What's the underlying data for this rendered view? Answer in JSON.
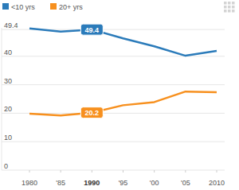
{
  "chart_data": {
    "type": "line",
    "x": [
      1980,
      1985,
      1990,
      1995,
      2000,
      2005,
      2010
    ],
    "series": [
      {
        "name": "<10 yrs",
        "color": "#2b7bba",
        "values": [
          49.8,
          48.7,
          49.4,
          46.3,
          43.5,
          40.2,
          41.9
        ]
      },
      {
        "name": "20+ yrs",
        "color": "#f7901e",
        "values": [
          19.8,
          19.2,
          20.2,
          22.8,
          23.9,
          27.6,
          27.4
        ]
      }
    ],
    "xlim": [
      1980,
      2010
    ],
    "xticks": [
      {
        "value": 1980,
        "label": "1980"
      },
      {
        "value": 1985,
        "label": "'85"
      },
      {
        "value": 1990,
        "label": "1990"
      },
      {
        "value": 1995,
        "label": "'95"
      },
      {
        "value": 2000,
        "label": "'00"
      },
      {
        "value": 2005,
        "label": "'05"
      },
      {
        "value": 2010,
        "label": "2010"
      }
    ],
    "ylim": [
      0,
      50
    ],
    "yticks": [
      0,
      10,
      20,
      30,
      40,
      49.4
    ],
    "grid": true,
    "legend": "top-left",
    "annotations": [
      {
        "text": "49.4",
        "x": 1990,
        "y": 49.4,
        "color": "#2b7bba"
      },
      {
        "text": "20.2",
        "x": 1990,
        "y": 20.2,
        "color": "#f7901e"
      }
    ]
  }
}
